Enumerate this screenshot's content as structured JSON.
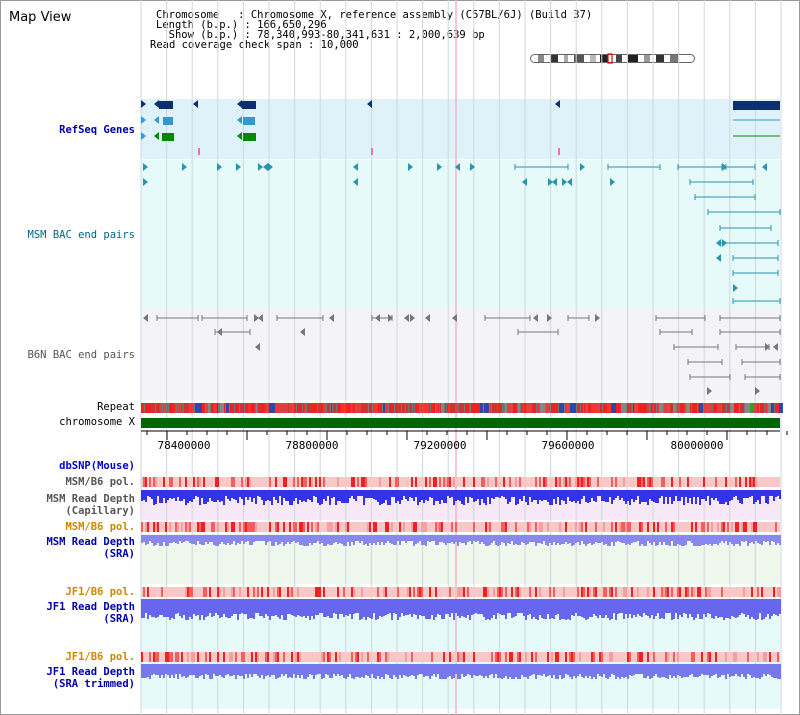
{
  "title": "Map View",
  "info": {
    "chromosome_line": "Chromosome   : Chromosome X, reference assembly (C57BL/6J) (Build 37)",
    "length_line": "Length (b.p.) : 166,650,296",
    "show_line": "  Show (b.p.) : 78,340,993-80,341,631 : 2,000,639 bp",
    "coverage_line": "Read coverage check span : 10,000"
  },
  "tracks": {
    "refseq": {
      "label": "RefSeq Genes",
      "color": "#0000aa"
    },
    "msm_bac": {
      "label": "MSM BAC end pairs",
      "color": "#006688"
    },
    "b6n_bac": {
      "label": "B6N BAC end pairs",
      "color": "#555555"
    },
    "repeat": {
      "label": "Repeat"
    },
    "chromosome": {
      "label": "chromosome X"
    },
    "dbsnp": {
      "label": "dbSNP(Mouse)",
      "color": "#0000cc"
    },
    "msm_b6_pol_1": {
      "label": "MSM/B6 pol.",
      "color": "#555555"
    },
    "msm_depth_cap": {
      "label": "MSM Read Depth\n(Capillary)",
      "color": "#555555"
    },
    "msm_b6_pol_2": {
      "label": "MSM/B6 pol.",
      "color": "#cc8800"
    },
    "msm_depth_sra": {
      "label": "MSM Read Depth\n(SRA)",
      "color": "#0000aa"
    },
    "jf1_b6_pol_1": {
      "label": "JF1/B6 pol.",
      "color": "#cc8800"
    },
    "jf1_depth_sra": {
      "label": "JF1 Read Depth\n(SRA)",
      "color": "#0000aa"
    },
    "jf1_b6_pol_2": {
      "label": "JF1/B6 pol.",
      "color": "#cc8800"
    },
    "jf1_depth_trim": {
      "label": "JF1 Read Depth\n(SRA trimmed)",
      "color": "#0000aa"
    }
  },
  "axis": {
    "ticks": [
      "78400000",
      "78800000",
      "79200000",
      "79600000",
      "80000000"
    ]
  },
  "colors": {
    "refseq_bg": "#dff2fa",
    "msm_bg": "#e6fafa",
    "b6n_bg": "#f4f4f8",
    "chromosome_bar": "#006600",
    "gene_dark": "#0d2f6e",
    "gene_mid": "#3399cc",
    "gene_green": "#008800",
    "read_depth": "#3333ee",
    "pol_red": "#ee2222"
  }
}
